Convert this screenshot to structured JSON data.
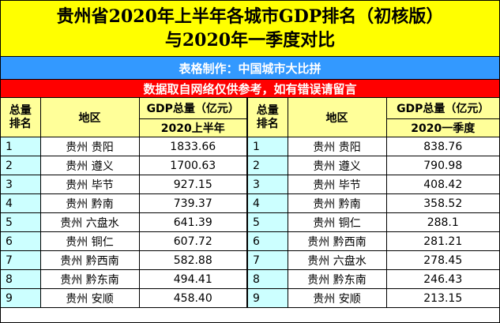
{
  "title": {
    "line1": "贵州省2020年上半年各城市GDP排名（初核版）",
    "line2": "与2020年一季度对比"
  },
  "maker_note": "表格制作：中国城市大比拼",
  "disclaimer": "数据取自网络仅供参考，如有错误请留言",
  "headers": {
    "rank_line1": "总量",
    "rank_line2": "排名",
    "region": "地区",
    "gdp_total": "GDP总量（亿元）",
    "period_left": "2020上半年",
    "period_right": "2020一季度"
  },
  "left_rows": [
    {
      "rank": "1",
      "region": "贵州 贵阳",
      "value": "1833.66"
    },
    {
      "rank": "2",
      "region": "贵州 遵义",
      "value": "1700.63"
    },
    {
      "rank": "3",
      "region": "贵州 毕节",
      "value": "927.15"
    },
    {
      "rank": "4",
      "region": "贵州 黔南",
      "value": "739.37"
    },
    {
      "rank": "5",
      "region": "贵州 六盘水",
      "value": "641.39"
    },
    {
      "rank": "6",
      "region": "贵州 铜仁",
      "value": "607.72"
    },
    {
      "rank": "7",
      "region": "贵州 黔西南",
      "value": "582.88"
    },
    {
      "rank": "8",
      "region": "贵州 黔东南",
      "value": "494.41"
    },
    {
      "rank": "9",
      "region": "贵州 安顺",
      "value": "458.40"
    }
  ],
  "right_rows": [
    {
      "rank": "1",
      "region": "贵州 贵阳",
      "value": "838.76"
    },
    {
      "rank": "2",
      "region": "贵州 遵义",
      "value": "790.98"
    },
    {
      "rank": "3",
      "region": "贵州 毕节",
      "value": "408.42"
    },
    {
      "rank": "4",
      "region": "贵州 黔南",
      "value": "358.52"
    },
    {
      "rank": "5",
      "region": "贵州 铜仁",
      "value": "288.1"
    },
    {
      "rank": "6",
      "region": "贵州 黔西南",
      "value": "281.21"
    },
    {
      "rank": "7",
      "region": "贵州 六盘水",
      "value": "278.45"
    },
    {
      "rank": "8",
      "region": "贵州 黔东南",
      "value": "246.43"
    },
    {
      "rank": "9",
      "region": "贵州 安顺",
      "value": "213.15"
    }
  ],
  "colors": {
    "title_bg": "#ffff00",
    "maker_bg": "#3399ff",
    "notice_bg": "#ff0000",
    "header_bg": "#ffff99",
    "rank_bg": "#ccffff"
  }
}
